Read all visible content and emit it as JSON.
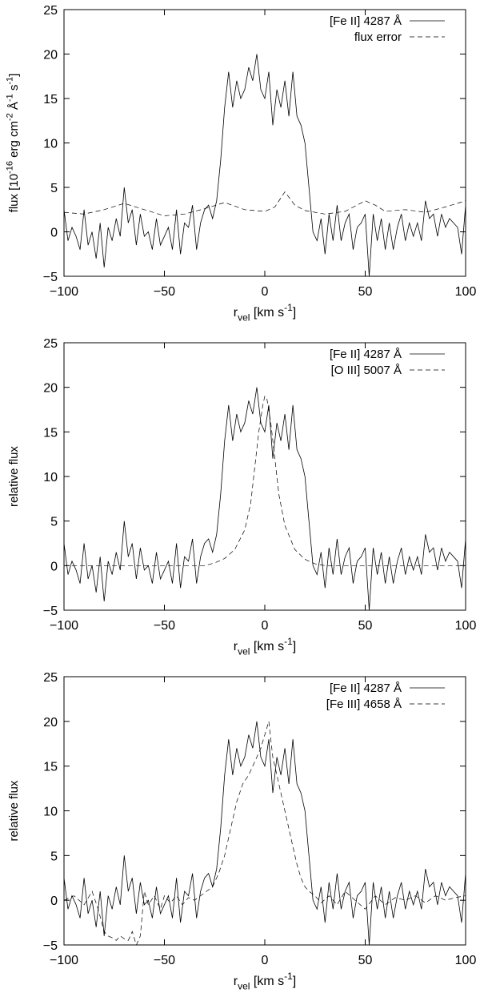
{
  "chart_data": [
    {
      "type": "line",
      "xlabel": "r_vel [km s^-1]",
      "ylabel": "flux [10^-16 erg cm^-2 Å^-1 s^-1]",
      "xlim": [
        -100,
        100
      ],
      "ylim": [
        -5,
        25
      ],
      "xticks": [
        -100,
        -50,
        0,
        50,
        100
      ],
      "yticks": [
        -5,
        0,
        5,
        10,
        15,
        20,
        25
      ],
      "grid": false,
      "legend_position": "top-right",
      "series": [
        {
          "name": "[Fe II] 4287 Å",
          "style": "solid",
          "x": [
            -100,
            -98,
            -96,
            -94,
            -92,
            -90,
            -88,
            -86,
            -84,
            -82,
            -80,
            -78,
            -76,
            -74,
            -72,
            -70,
            -68,
            -66,
            -64,
            -62,
            -60,
            -58,
            -56,
            -54,
            -52,
            -50,
            -48,
            -46,
            -44,
            -42,
            -40,
            -38,
            -36,
            -34,
            -32,
            -30,
            -28,
            -26,
            -24,
            -22,
            -20,
            -18,
            -16,
            -14,
            -12,
            -10,
            -8,
            -6,
            -4,
            -2,
            0,
            2,
            4,
            6,
            8,
            10,
            12,
            14,
            16,
            18,
            20,
            22,
            24,
            26,
            28,
            30,
            32,
            34,
            36,
            38,
            40,
            42,
            44,
            46,
            48,
            50,
            52,
            54,
            56,
            58,
            60,
            62,
            64,
            66,
            68,
            70,
            72,
            74,
            76,
            78,
            80,
            82,
            84,
            86,
            88,
            90,
            92,
            94,
            96,
            98,
            100
          ],
          "y": [
            2.5,
            -1,
            0.5,
            -0.5,
            -2,
            2.5,
            -1.5,
            0,
            -3,
            1,
            -4,
            0.5,
            -1,
            1.5,
            -0.5,
            5,
            1,
            2.5,
            -1.5,
            2,
            -0.5,
            0,
            -2,
            1.5,
            -1.5,
            -0.5,
            0.5,
            -2,
            2.5,
            -2.5,
            1,
            0.5,
            3,
            -2,
            1,
            2.5,
            3,
            1.5,
            3.5,
            8,
            14,
            18,
            14,
            17,
            15,
            16,
            18.5,
            17,
            20,
            16,
            15,
            18,
            12,
            16,
            14,
            17,
            13,
            18,
            13,
            12,
            10,
            5,
            0,
            -1,
            1.5,
            -2.5,
            2,
            -1,
            3,
            -1,
            1,
            2,
            -2,
            0.5,
            1,
            2,
            -5,
            2,
            -1,
            1.5,
            -2,
            1,
            -2,
            0.5,
            2,
            -1,
            1,
            -0.5,
            1,
            -1,
            3.5,
            1.5,
            2,
            -0.5,
            2,
            0.5,
            1.5,
            1,
            0.5,
            -2.5,
            3
          ]
        },
        {
          "name": "flux error",
          "style": "dashed",
          "x": [
            -100,
            -90,
            -80,
            -70,
            -60,
            -50,
            -40,
            -30,
            -20,
            -10,
            0,
            5,
            10,
            15,
            20,
            30,
            40,
            50,
            55,
            60,
            70,
            80,
            90,
            100
          ],
          "y": [
            2.2,
            2,
            2.5,
            3.2,
            2.5,
            1.8,
            2,
            2.6,
            3.3,
            2.5,
            2.3,
            2.8,
            4.5,
            3,
            2.4,
            2,
            2.3,
            3.5,
            3,
            2.3,
            2.5,
            2.2,
            2.8,
            3.5
          ]
        }
      ]
    },
    {
      "type": "line",
      "xlabel": "r_vel [km s^-1]",
      "ylabel": "relative flux",
      "xlim": [
        -100,
        100
      ],
      "ylim": [
        -5,
        25
      ],
      "xticks": [
        -100,
        -50,
        0,
        50,
        100
      ],
      "yticks": [
        -5,
        0,
        5,
        10,
        15,
        20,
        25
      ],
      "grid": false,
      "legend_position": "top-right",
      "series": [
        {
          "name": "[Fe II] 4287 Å",
          "style": "solid",
          "x": [
            -100,
            -98,
            -96,
            -94,
            -92,
            -90,
            -88,
            -86,
            -84,
            -82,
            -80,
            -78,
            -76,
            -74,
            -72,
            -70,
            -68,
            -66,
            -64,
            -62,
            -60,
            -58,
            -56,
            -54,
            -52,
            -50,
            -48,
            -46,
            -44,
            -42,
            -40,
            -38,
            -36,
            -34,
            -32,
            -30,
            -28,
            -26,
            -24,
            -22,
            -20,
            -18,
            -16,
            -14,
            -12,
            -10,
            -8,
            -6,
            -4,
            -2,
            0,
            2,
            4,
            6,
            8,
            10,
            12,
            14,
            16,
            18,
            20,
            22,
            24,
            26,
            28,
            30,
            32,
            34,
            36,
            38,
            40,
            42,
            44,
            46,
            48,
            50,
            52,
            54,
            56,
            58,
            60,
            62,
            64,
            66,
            68,
            70,
            72,
            74,
            76,
            78,
            80,
            82,
            84,
            86,
            88,
            90,
            92,
            94,
            96,
            98,
            100
          ],
          "y": [
            2.5,
            -1,
            0.5,
            -0.5,
            -2,
            2.5,
            -1.5,
            0,
            -3,
            1,
            -4,
            0.5,
            -1,
            1.5,
            -0.5,
            5,
            1,
            2.5,
            -1.5,
            2,
            -0.5,
            0,
            -2,
            1.5,
            -1.5,
            -0.5,
            0.5,
            -2,
            2.5,
            -2.5,
            1,
            0.5,
            3,
            -2,
            1,
            2.5,
            3,
            1.5,
            3.5,
            8,
            14,
            18,
            14,
            17,
            15,
            16,
            18.5,
            17,
            20,
            16,
            15,
            18,
            12,
            16,
            14,
            17,
            13,
            18,
            13,
            12,
            10,
            5,
            0,
            -1,
            1.5,
            -2.5,
            2,
            -1,
            3,
            -1,
            1,
            2,
            -2,
            0.5,
            1,
            2,
            -5,
            2,
            -1,
            1.5,
            -2,
            1,
            -2,
            0.5,
            2,
            -1,
            1,
            -0.5,
            1,
            -1,
            3.5,
            1.5,
            2,
            -0.5,
            2,
            0.5,
            1.5,
            1,
            0.5,
            -2.5,
            3
          ]
        },
        {
          "name": "[O III] 5007 Å",
          "style": "dashed",
          "x": [
            -100,
            -60,
            -30,
            -25,
            -20,
            -15,
            -10,
            -7,
            -5,
            -3,
            -1,
            0,
            1,
            3,
            5,
            7,
            10,
            15,
            20,
            25,
            30,
            60,
            100
          ],
          "y": [
            0,
            0,
            0,
            0.3,
            0.8,
            1.8,
            4,
            7,
            11,
            15,
            18,
            19,
            18.8,
            16,
            12,
            8,
            4.5,
            1.8,
            0.7,
            0.2,
            0,
            0,
            0
          ]
        }
      ]
    },
    {
      "type": "line",
      "xlabel": "r_vel [km s^-1]",
      "ylabel": "relative flux",
      "xlim": [
        -100,
        100
      ],
      "ylim": [
        -5,
        25
      ],
      "xticks": [
        -100,
        -50,
        0,
        50,
        100
      ],
      "yticks": [
        -5,
        0,
        5,
        10,
        15,
        20,
        25
      ],
      "grid": false,
      "legend_position": "top-right",
      "series": [
        {
          "name": "[Fe II] 4287 Å",
          "style": "solid",
          "x": [
            -100,
            -98,
            -96,
            -94,
            -92,
            -90,
            -88,
            -86,
            -84,
            -82,
            -80,
            -78,
            -76,
            -74,
            -72,
            -70,
            -68,
            -66,
            -64,
            -62,
            -60,
            -58,
            -56,
            -54,
            -52,
            -50,
            -48,
            -46,
            -44,
            -42,
            -40,
            -38,
            -36,
            -34,
            -32,
            -30,
            -28,
            -26,
            -24,
            -22,
            -20,
            -18,
            -16,
            -14,
            -12,
            -10,
            -8,
            -6,
            -4,
            -2,
            0,
            2,
            4,
            6,
            8,
            10,
            12,
            14,
            16,
            18,
            20,
            22,
            24,
            26,
            28,
            30,
            32,
            34,
            36,
            38,
            40,
            42,
            44,
            46,
            48,
            50,
            52,
            54,
            56,
            58,
            60,
            62,
            64,
            66,
            68,
            70,
            72,
            74,
            76,
            78,
            80,
            82,
            84,
            86,
            88,
            90,
            92,
            94,
            96,
            98,
            100
          ],
          "y": [
            2.5,
            -1,
            0.5,
            -0.5,
            -2,
            2.5,
            -1.5,
            0,
            -3,
            1,
            -4,
            0.5,
            -1,
            1.5,
            -0.5,
            5,
            1,
            2.5,
            -1.5,
            2,
            -0.5,
            0,
            -2,
            1.5,
            -1.5,
            -0.5,
            0.5,
            -2,
            2.5,
            -2.5,
            1,
            0.5,
            3,
            -2,
            1,
            2.5,
            3,
            1.5,
            3.5,
            8,
            14,
            18,
            14,
            17,
            15,
            16,
            18.5,
            17,
            20,
            16,
            15,
            18,
            12,
            16,
            14,
            17,
            13,
            18,
            13,
            12,
            10,
            5,
            0,
            -1,
            1.5,
            -2.5,
            2,
            -1,
            3,
            -1,
            1,
            2,
            -2,
            0.5,
            1,
            2,
            -5,
            2,
            -1,
            1.5,
            -2,
            1,
            -2,
            0.5,
            2,
            -1,
            1,
            -0.5,
            1,
            -1,
            3.5,
            1.5,
            2,
            -0.5,
            2,
            0.5,
            1.5,
            1,
            0.5,
            -2.5,
            3
          ]
        },
        {
          "name": "[Fe III] 4658 Å",
          "style": "dashed",
          "x": [
            -100,
            -95,
            -90,
            -86,
            -83,
            -80,
            -78,
            -76,
            -74,
            -72,
            -70,
            -68,
            -66,
            -64,
            -62,
            -60,
            -58,
            -55,
            -52,
            -50,
            -47,
            -44,
            -41,
            -38,
            -35,
            -32,
            -29,
            -26,
            -23,
            -20,
            -17,
            -14,
            -11,
            -8,
            -6,
            -4,
            -2,
            0,
            2,
            4,
            6,
            8,
            10,
            12,
            14,
            16,
            18,
            20,
            22,
            25,
            28,
            32,
            36,
            40,
            45,
            50,
            55,
            60,
            65,
            70,
            75,
            80,
            85,
            90,
            95,
            100
          ],
          "y": [
            0,
            0.5,
            -0.5,
            1,
            -1,
            -3.5,
            -4,
            -4.2,
            -4.5,
            -4,
            -4.3,
            -4.5,
            -3.5,
            -5,
            -4,
            1,
            -0.5,
            0.5,
            -1,
            0.5,
            -0.3,
            0.5,
            -0.5,
            0.3,
            0,
            0.5,
            1,
            1.5,
            3,
            5,
            8,
            11,
            13,
            14,
            15,
            16,
            17,
            18.5,
            20,
            16,
            14,
            12,
            10,
            8,
            6,
            4,
            2.5,
            1.5,
            1,
            0.5,
            -0.3,
            0.5,
            -0.5,
            1,
            0,
            -1,
            0.5,
            -0.5,
            0.3,
            0,
            0.5,
            -0.3,
            0.5,
            0,
            0.3,
            0.5
          ]
        }
      ]
    }
  ]
}
